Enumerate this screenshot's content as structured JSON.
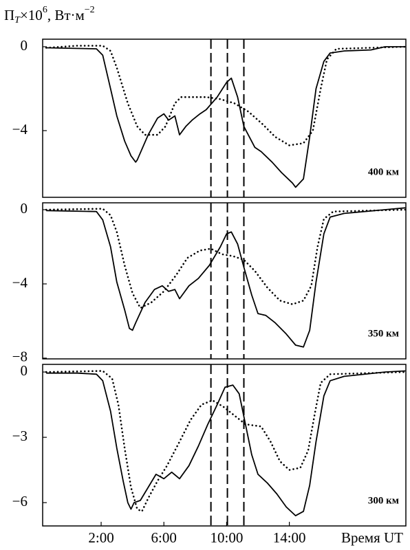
{
  "chart_data": [
    {
      "type": "line",
      "ylabel": [
        "П",
        "T",
        "×10",
        "6",
        ", Вт·м",
        "−2"
      ],
      "label": "400 км",
      "xlim": [
        -1.73,
        21.43
      ],
      "ylim": [
        -7.18,
        0.36
      ],
      "yticks": [
        0,
        {
          "value": -4,
          "label": "−4"
        }
      ],
      "vlines": [
        9.0,
        10.05,
        11.1
      ],
      "series": [
        {
          "color": "#000000",
          "style": "solid",
          "x": [
            -1.5,
            1.7,
            2.1,
            2.6,
            3.0,
            3.5,
            3.9,
            4.2,
            4.3,
            5.0,
            5.6,
            6.0,
            6.3,
            6.7,
            7.0,
            7.4,
            7.8,
            8.3,
            8.7,
            9.4,
            10.0,
            10.3,
            10.7,
            11.1,
            11.8,
            12.2,
            12.9,
            13.5,
            14.2,
            14.4,
            14.9,
            15.3,
            15.7,
            16.2,
            16.6,
            17.5,
            19.2,
            20.1,
            21.4
          ],
          "values": [
            -0.05,
            -0.1,
            -0.4,
            -2.0,
            -3.3,
            -4.5,
            -5.2,
            -5.5,
            -5.4,
            -4.2,
            -3.4,
            -3.2,
            -3.5,
            -3.3,
            -4.2,
            -3.8,
            -3.5,
            -3.2,
            -3.0,
            -2.4,
            -1.7,
            -1.5,
            -2.4,
            -3.8,
            -4.8,
            -5.0,
            -5.5,
            -6.0,
            -6.5,
            -6.7,
            -6.3,
            -4.3,
            -2.0,
            -0.7,
            -0.3,
            -0.2,
            -0.15,
            0,
            0
          ]
        },
        {
          "color": "#000000",
          "style": "dotted",
          "x": [
            -1.5,
            0.5,
            2.1,
            2.6,
            3.0,
            3.7,
            4.3,
            4.8,
            5.6,
            6.1,
            6.7,
            7.1,
            8.7,
            9.6,
            10.5,
            11.4,
            12.3,
            13.1,
            14.0,
            14.9,
            15.5,
            16.0,
            16.4,
            17.0,
            21.4
          ],
          "values": [
            -0.05,
            0.05,
            0.05,
            -0.2,
            -1.0,
            -2.7,
            -3.8,
            -4.2,
            -4.2,
            -3.8,
            -2.7,
            -2.4,
            -2.4,
            -2.5,
            -2.7,
            -3.1,
            -3.7,
            -4.3,
            -4.7,
            -4.6,
            -4.0,
            -2.0,
            -0.6,
            -0.1,
            0
          ]
        }
      ]
    },
    {
      "type": "line",
      "label": "350 км",
      "xlim": [
        -1.73,
        21.43
      ],
      "ylim": [
        -8.04,
        0.37
      ],
      "yticks": [
        0,
        {
          "value": -4,
          "label": "−4"
        },
        {
          "value": -8,
          "label": "−8"
        }
      ],
      "vlines": [
        9.0,
        10.05,
        11.1
      ],
      "series": [
        {
          "color": "#000000",
          "style": "solid",
          "x": [
            -1.5,
            1.7,
            2.1,
            2.6,
            3.0,
            3.5,
            3.8,
            4.0,
            4.2,
            4.8,
            5.4,
            5.9,
            6.3,
            6.7,
            7.0,
            7.6,
            8.2,
            8.9,
            9.6,
            10.0,
            10.3,
            10.7,
            11.1,
            11.6,
            12.0,
            12.5,
            13.1,
            13.8,
            14.4,
            14.9,
            15.3,
            15.7,
            16.2,
            16.6,
            17.5,
            20.1,
            21.4
          ],
          "values": [
            -0.05,
            -0.1,
            -0.55,
            -2.0,
            -3.9,
            -5.4,
            -6.4,
            -6.5,
            -6.1,
            -5.0,
            -4.3,
            -4.1,
            -4.4,
            -4.3,
            -4.8,
            -4.1,
            -3.7,
            -3.0,
            -2.0,
            -1.3,
            -1.2,
            -1.85,
            -3.1,
            -4.6,
            -5.6,
            -5.7,
            -6.1,
            -6.7,
            -7.3,
            -7.4,
            -6.5,
            -3.9,
            -1.3,
            -0.4,
            -0.2,
            0,
            0.1
          ]
        },
        {
          "color": "#000000",
          "style": "dotted",
          "x": [
            -1.5,
            2.1,
            2.6,
            3.0,
            3.5,
            4.0,
            4.5,
            5.2,
            6.0,
            6.8,
            7.5,
            8.3,
            9.0,
            9.7,
            10.4,
            11.1,
            11.8,
            12.6,
            13.4,
            14.2,
            14.9,
            15.4,
            15.8,
            16.2,
            16.8,
            21.4
          ],
          "values": [
            0,
            0.05,
            -0.3,
            -1.2,
            -3.0,
            -4.5,
            -5.3,
            -5.0,
            -4.4,
            -3.5,
            -2.6,
            -2.2,
            -2.1,
            -2.4,
            -2.5,
            -2.7,
            -3.3,
            -4.2,
            -4.9,
            -5.1,
            -4.9,
            -4.1,
            -2.0,
            -0.5,
            -0.1,
            0
          ]
        }
      ]
    },
    {
      "type": "line",
      "label": "300 км",
      "xlabel": "Время UT",
      "xlim": [
        -1.73,
        21.43
      ],
      "ylim": [
        -7.07,
        0.35
      ],
      "yticks": [
        0,
        {
          "value": -3,
          "label": "−3"
        },
        {
          "value": -6,
          "label": "−6"
        }
      ],
      "xticks": [
        {
          "value": 2,
          "label": "2:00"
        },
        {
          "value": 6,
          "label": "6:00"
        },
        {
          "value": 10,
          "label": "10:00"
        },
        {
          "value": 14,
          "label": "14:00"
        }
      ],
      "vlines": [
        9.0,
        10.05,
        11.1
      ],
      "series": [
        {
          "color": "#000000",
          "style": "solid",
          "x": [
            -1.5,
            0.5,
            1.7,
            2.1,
            2.6,
            3.0,
            3.4,
            3.7,
            3.9,
            4.1,
            4.5,
            5.0,
            5.5,
            6.0,
            6.5,
            7.0,
            7.6,
            8.2,
            8.8,
            9.4,
            9.9,
            10.4,
            10.8,
            11.2,
            11.6,
            12.0,
            12.6,
            13.2,
            13.8,
            14.4,
            14.9,
            15.3,
            15.7,
            16.2,
            16.6,
            17.5,
            20.1,
            21.4
          ],
          "values": [
            -0.05,
            -0.05,
            -0.1,
            -0.4,
            -1.8,
            -3.5,
            -5.0,
            -6.0,
            -6.3,
            -6.0,
            -5.9,
            -5.3,
            -4.7,
            -4.9,
            -4.6,
            -4.9,
            -4.3,
            -3.4,
            -2.4,
            -1.5,
            -0.7,
            -0.6,
            -1.0,
            -2.4,
            -3.8,
            -4.7,
            -5.1,
            -5.6,
            -6.2,
            -6.6,
            -6.4,
            -5.2,
            -3.2,
            -1.1,
            -0.4,
            -0.2,
            0,
            0.05
          ]
        },
        {
          "color": "#000000",
          "style": "dotted",
          "x": [
            -1.5,
            2.1,
            2.7,
            3.1,
            3.5,
            3.9,
            4.3,
            4.6,
            5.0,
            5.6,
            6.2,
            7.0,
            7.7,
            8.4,
            9.1,
            9.8,
            10.5,
            11.2,
            12.2,
            12.8,
            13.4,
            14.0,
            14.7,
            15.2,
            15.6,
            16.0,
            16.6,
            21.4
          ],
          "values": [
            0,
            0.05,
            -0.3,
            -1.5,
            -3.5,
            -5.3,
            -6.3,
            -6.4,
            -5.8,
            -5.0,
            -4.3,
            -3.2,
            -2.2,
            -1.5,
            -1.3,
            -1.6,
            -2.0,
            -2.4,
            -2.5,
            -3.2,
            -4.1,
            -4.5,
            -4.4,
            -3.6,
            -2.0,
            -0.5,
            -0.1,
            0
          ]
        }
      ]
    }
  ]
}
